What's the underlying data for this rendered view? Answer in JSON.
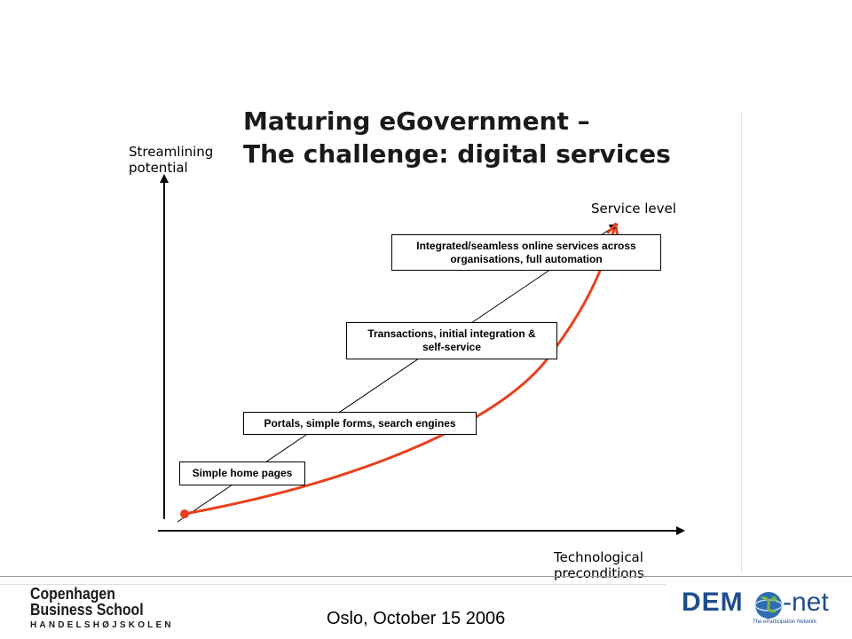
{
  "title": {
    "line1": "Maturing eGovernment –",
    "line2": "The challenge: digital services"
  },
  "y_axis_label": {
    "line1": "Streamlining",
    "line2": "potential"
  },
  "x_axis_label": {
    "line1": "Technological",
    "line2": "preconditions"
  },
  "diagonal_label": "Service level",
  "stages": [
    {
      "line1": "Simple home pages",
      "line2": ""
    },
    {
      "line1": "Portals, simple forms, search engines",
      "line2": ""
    },
    {
      "line1": "Transactions, initial integration &",
      "line2": "self-service"
    },
    {
      "line1": "Integrated/seamless online services across",
      "line2": "organisations, full automation"
    }
  ],
  "colors": {
    "curve": "#e8401c",
    "axis": "#000000",
    "logo_blue": "#1f4e8c",
    "globe_green": "#7cb342"
  },
  "footer": {
    "text": "Oslo, October 15 2006",
    "cbs_logo": {
      "line1": "Copenhagen",
      "line2": "Business School",
      "line3": "HANDELSHØJSKOLEN"
    },
    "demo_logo": {
      "word": "DEM",
      "suffix": "-net",
      "tagline": "The eParticipation Network",
      "icon": "globe-icon"
    }
  }
}
